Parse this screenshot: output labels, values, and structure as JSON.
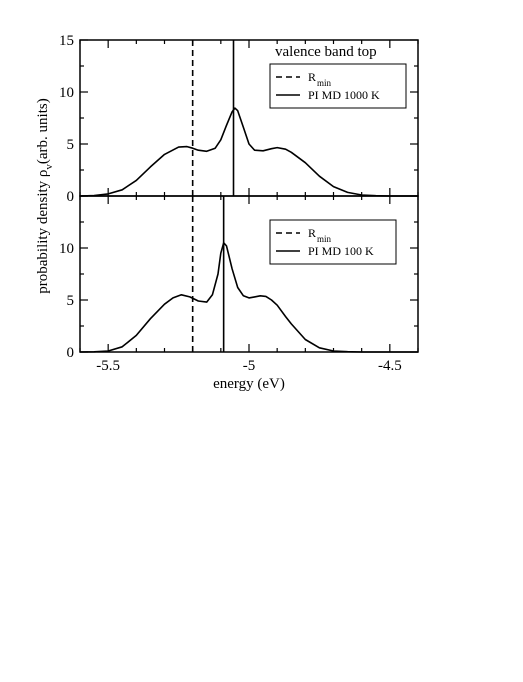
{
  "chart_data": {
    "type": "line",
    "xlabel": "energy (eV)",
    "ylabel": {
      "main": "probability density ρ",
      "subscript": "v",
      "suffix": "(arb. units)"
    },
    "xlim": [
      -5.6,
      -4.4
    ],
    "x_ticks": [
      -5.5,
      -5.0,
      -4.5
    ],
    "x_tick_labels": [
      "-5.5",
      "-5",
      "-4.5"
    ],
    "panels": [
      {
        "annotation": "valence band top",
        "ylim": [
          0,
          15
        ],
        "y_ticks": [
          0,
          5,
          10,
          15
        ],
        "y_tick_labels": [
          "0",
          "5",
          "10",
          "15"
        ],
        "legend": [
          {
            "label": "R",
            "subscript": "min",
            "style": "dashed"
          },
          {
            "label": "PI MD 1000 K",
            "style": "solid"
          }
        ],
        "vlines": [
          {
            "series": "R_min",
            "x": -5.2,
            "style": "dashed"
          },
          {
            "series": "PI MD 1000 K",
            "x": -5.055,
            "style": "solid"
          }
        ],
        "series": [
          {
            "name": "PI MD 1000 K",
            "x": [
              -5.6,
              -5.55,
              -5.5,
              -5.45,
              -5.4,
              -5.35,
              -5.3,
              -5.25,
              -5.22,
              -5.2,
              -5.18,
              -5.15,
              -5.12,
              -5.1,
              -5.08,
              -5.06,
              -5.05,
              -5.04,
              -5.02,
              -5.0,
              -4.98,
              -4.95,
              -4.92,
              -4.9,
              -4.87,
              -4.85,
              -4.8,
              -4.75,
              -4.7,
              -4.65,
              -4.6,
              -4.55,
              -4.5,
              -4.45,
              -4.4
            ],
            "y": [
              0.0,
              0.05,
              0.2,
              0.6,
              1.5,
              2.8,
              4.0,
              4.7,
              4.75,
              4.6,
              4.4,
              4.3,
              4.6,
              5.4,
              6.8,
              8.1,
              8.45,
              8.2,
              6.6,
              5.0,
              4.4,
              4.35,
              4.55,
              4.65,
              4.5,
              4.2,
              3.2,
              1.9,
              0.9,
              0.35,
              0.1,
              0.03,
              0.0,
              0.0,
              0.0
            ]
          }
        ]
      },
      {
        "ylim": [
          0,
          15
        ],
        "y_ticks": [
          0,
          5,
          10
        ],
        "y_tick_labels": [
          "0",
          "5",
          "10"
        ],
        "legend": [
          {
            "label": "R",
            "subscript": "min",
            "style": "dashed"
          },
          {
            "label": "PI MD 100 K",
            "style": "solid"
          }
        ],
        "vlines": [
          {
            "series": "R_min",
            "x": -5.2,
            "style": "dashed"
          },
          {
            "series": "PI MD 100 K",
            "x": -5.09,
            "style": "solid"
          }
        ],
        "series": [
          {
            "name": "PI MD 100 K",
            "x": [
              -5.6,
              -5.55,
              -5.5,
              -5.45,
              -5.4,
              -5.35,
              -5.3,
              -5.27,
              -5.24,
              -5.21,
              -5.18,
              -5.15,
              -5.13,
              -5.11,
              -5.1,
              -5.09,
              -5.08,
              -5.06,
              -5.04,
              -5.02,
              -5.0,
              -4.98,
              -4.96,
              -4.94,
              -4.92,
              -4.9,
              -4.87,
              -4.85,
              -4.8,
              -4.75,
              -4.7,
              -4.65,
              -4.6,
              -4.5,
              -4.4
            ],
            "y": [
              0.0,
              0.02,
              0.1,
              0.5,
              1.6,
              3.2,
              4.6,
              5.2,
              5.5,
              5.3,
              4.9,
              4.8,
              5.5,
              7.5,
              9.5,
              10.5,
              10.2,
              8.0,
              6.2,
              5.4,
              5.2,
              5.3,
              5.4,
              5.35,
              5.0,
              4.5,
              3.4,
              2.7,
              1.2,
              0.4,
              0.1,
              0.03,
              0.0,
              0.0,
              0.0
            ]
          }
        ]
      }
    ]
  }
}
